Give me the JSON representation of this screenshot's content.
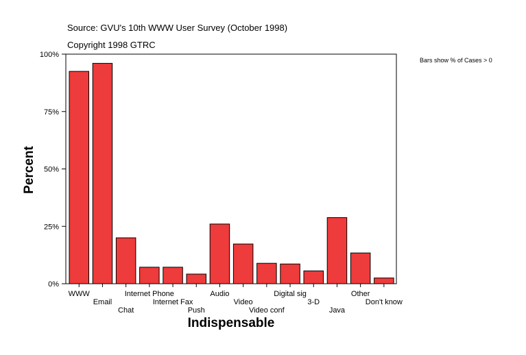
{
  "header": {
    "source": "Source: GVU's 10th WWW User Survey (October 1998)",
    "copyright": "Copyright 1998 GTRC"
  },
  "note": "Bars show % of Cases > 0",
  "colors": {
    "bar": "#ee3b3b",
    "axis": "#000000",
    "background": "#ffffff"
  },
  "chart_data": {
    "type": "bar",
    "title": "",
    "xlabel": "Indispensable",
    "ylabel": "Percent",
    "ylim": [
      0,
      100
    ],
    "yticks": [
      0,
      25,
      50,
      75,
      100
    ],
    "ytick_labels": [
      "0%",
      "25%",
      "50%",
      "75%",
      "100%"
    ],
    "categories": [
      "WWW",
      "Email",
      "Chat",
      "Internet Phone",
      "Internet Fax",
      "Push",
      "Audio",
      "Video",
      "Video conf",
      "Digital sig",
      "3-D",
      "Java",
      "Other",
      "Don't know"
    ],
    "values": [
      92.5,
      96.0,
      20.0,
      7.2,
      7.2,
      4.2,
      26.0,
      17.3,
      8.9,
      8.6,
      5.6,
      28.8,
      13.4,
      2.5
    ],
    "grid": false
  }
}
